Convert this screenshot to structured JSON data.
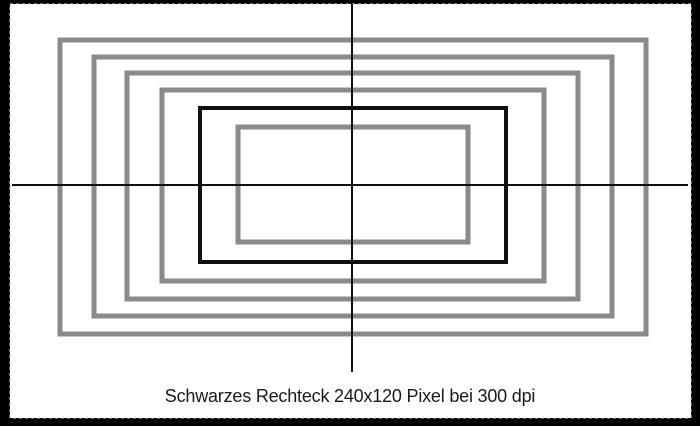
{
  "caption": "Schwarzes Rechteck 240x120 Pixel bei 300 dpi",
  "colors": {
    "background": "#000000",
    "sheet": "#ffffff",
    "sheet_border": "#d8d8d8",
    "gray_rect": "#8a8a8a",
    "black_rect": "#111111",
    "crosshair": "#111111"
  }
}
